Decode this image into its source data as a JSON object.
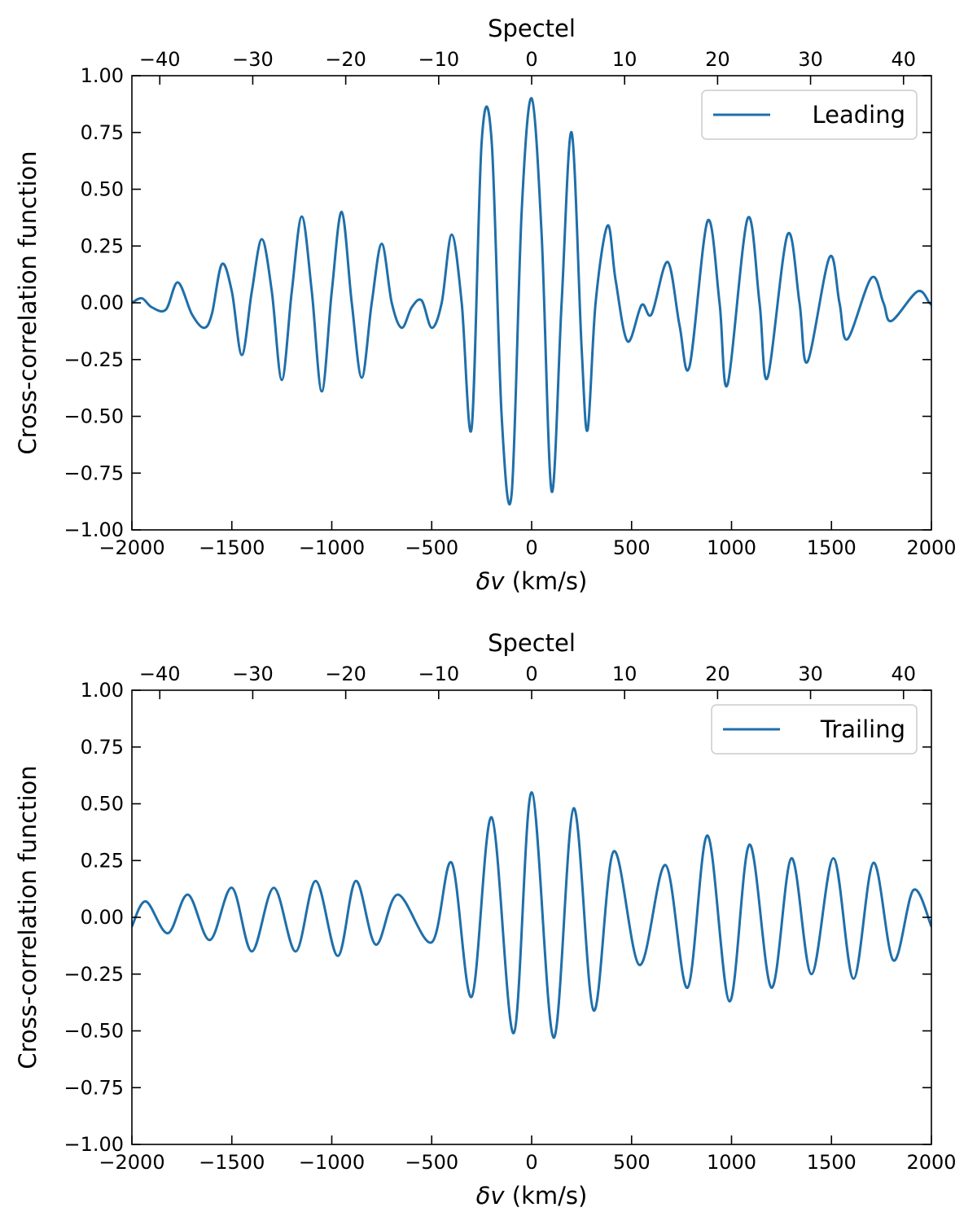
{
  "chart_data": [
    {
      "type": "line",
      "panel": "top",
      "xlabel_prefix": "δv",
      "xlabel_suffix": " (km/s)",
      "ylabel": "Cross-correlation function",
      "top_xlabel": "Spectel",
      "xlim": [
        -2000,
        2000
      ],
      "ylim": [
        -1.0,
        1.0
      ],
      "xticks": [
        -2000,
        -1500,
        -1000,
        -500,
        0,
        500,
        1000,
        1500,
        2000
      ],
      "xtick_labels": [
        "−2000",
        "−1500",
        "−1000",
        "−500",
        "0",
        "500",
        "1000",
        "1500",
        "2000"
      ],
      "yticks": [
        1.0,
        0.75,
        0.5,
        0.25,
        0.0,
        -0.25,
        -0.5,
        -0.75,
        -1.0
      ],
      "ytick_labels": [
        "1.00",
        "0.75",
        "0.50",
        "0.25",
        "0.00",
        "−0.25",
        "−0.50",
        "−0.75",
        "−1.00"
      ],
      "top_ticks": [
        -40,
        -30,
        -20,
        -10,
        0,
        10,
        20,
        30,
        40
      ],
      "top_tick_labels": [
        "−40",
        "−30",
        "−20",
        "−10",
        "0",
        "10",
        "20",
        "30",
        "40"
      ],
      "top_xlim": [
        -43,
        43
      ],
      "legend": "top-right",
      "series": [
        {
          "name": "Leading",
          "color": "#1f6faa",
          "x": [
            -2000,
            -1950,
            -1900,
            -1830,
            -1770,
            -1700,
            -1640,
            -1600,
            -1550,
            -1500,
            -1450,
            -1400,
            -1350,
            -1300,
            -1250,
            -1200,
            -1150,
            -1100,
            -1050,
            -1000,
            -950,
            -900,
            -850,
            -800,
            -750,
            -700,
            -650,
            -600,
            -550,
            -500,
            -450,
            -400,
            -350,
            -300,
            -250,
            -200,
            -150,
            -100,
            -50,
            0,
            50,
            100,
            150,
            200,
            250,
            280,
            320,
            380,
            420,
            480,
            550,
            600,
            680,
            740,
            790,
            880,
            940,
            980,
            1080,
            1140,
            1180,
            1280,
            1340,
            1380,
            1490,
            1540,
            1580,
            1700,
            1760,
            1800,
            1930,
            1990,
            2000
          ],
          "y": [
            0.0,
            0.02,
            -0.02,
            -0.03,
            0.09,
            -0.05,
            -0.11,
            -0.05,
            0.17,
            0.05,
            -0.23,
            0.05,
            0.28,
            0.05,
            -0.34,
            0.05,
            0.38,
            0.05,
            -0.39,
            0.05,
            0.4,
            0.0,
            -0.33,
            0.0,
            0.26,
            0.0,
            -0.11,
            -0.02,
            0.01,
            -0.11,
            0.0,
            0.3,
            0.0,
            -0.55,
            0.71,
            0.71,
            -0.5,
            -0.84,
            0.4,
            0.9,
            0.3,
            -0.83,
            0.0,
            0.75,
            -0.2,
            -0.56,
            0.0,
            0.34,
            0.1,
            -0.17,
            -0.01,
            -0.05,
            0.18,
            -0.1,
            -0.28,
            0.36,
            0.0,
            -0.36,
            0.37,
            0.0,
            -0.33,
            0.3,
            0.0,
            -0.26,
            0.2,
            0.0,
            -0.16,
            0.11,
            0.0,
            -0.08,
            0.05,
            0.0,
            -0.01
          ]
        }
      ]
    },
    {
      "type": "line",
      "panel": "bottom",
      "xlabel_prefix": "δv",
      "xlabel_suffix": " (km/s)",
      "ylabel": "Cross-correlation function",
      "top_xlabel": "Spectel",
      "xlim": [
        -2000,
        2000
      ],
      "ylim": [
        -1.0,
        1.0
      ],
      "xticks": [
        -2000,
        -1500,
        -1000,
        -500,
        0,
        500,
        1000,
        1500,
        2000
      ],
      "xtick_labels": [
        "−2000",
        "−1500",
        "−1000",
        "−500",
        "0",
        "500",
        "1000",
        "1500",
        "2000"
      ],
      "yticks": [
        1.0,
        0.75,
        0.5,
        0.25,
        0.0,
        -0.25,
        -0.5,
        -0.75,
        -1.0
      ],
      "ytick_labels": [
        "1.00",
        "0.75",
        "0.50",
        "0.25",
        "0.00",
        "−0.25",
        "−0.50",
        "−0.75",
        "−1.00"
      ],
      "top_ticks": [
        -40,
        -30,
        -20,
        -10,
        0,
        10,
        20,
        30,
        40
      ],
      "top_tick_labels": [
        "−40",
        "−30",
        "−20",
        "−10",
        "0",
        "10",
        "20",
        "30",
        "40"
      ],
      "top_xlim": [
        -43,
        43
      ],
      "legend": "top-right",
      "series": [
        {
          "name": "Trailing",
          "color": "#1f6faa",
          "x": [
            -2000,
            -1930,
            -1820,
            -1720,
            -1610,
            -1500,
            -1400,
            -1290,
            -1180,
            -1080,
            -970,
            -880,
            -780,
            -670,
            -500,
            -400,
            -300,
            -200,
            -90,
            0,
            110,
            210,
            310,
            410,
            540,
            670,
            780,
            880,
            990,
            1090,
            1200,
            1300,
            1400,
            1510,
            1610,
            1710,
            1810,
            1910,
            2000
          ],
          "y": [
            -0.04,
            0.07,
            -0.07,
            0.1,
            -0.1,
            0.13,
            -0.15,
            0.13,
            -0.15,
            0.16,
            -0.17,
            0.16,
            -0.12,
            0.1,
            -0.11,
            0.24,
            -0.35,
            0.44,
            -0.51,
            0.55,
            -0.53,
            0.48,
            -0.41,
            0.29,
            -0.21,
            0.23,
            -0.31,
            0.36,
            -0.37,
            0.32,
            -0.31,
            0.26,
            -0.25,
            0.26,
            -0.27,
            0.24,
            -0.19,
            0.12,
            -0.04
          ]
        }
      ]
    }
  ]
}
